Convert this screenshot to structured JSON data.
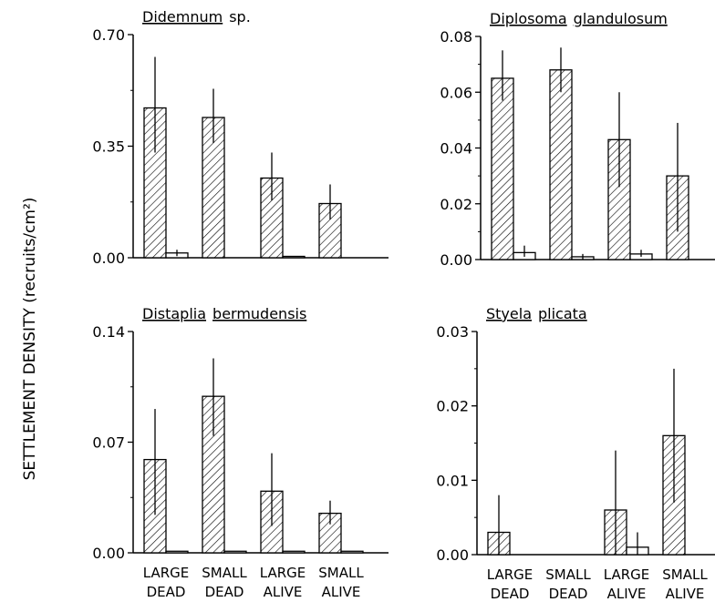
{
  "ylabel": "SETTLEMENT DENSITY (recruits/cm²)",
  "chart_data": [
    {
      "type": "bar",
      "title": [
        "Didemnum",
        "sp."
      ],
      "title_underlined": [
        true,
        false
      ],
      "ylim": [
        0,
        0.7
      ],
      "yticks": [
        "0.00",
        "0.35",
        "0.70"
      ],
      "categories": [
        "LARGE DEAD",
        "SMALL DEAD",
        "LARGE ALIVE",
        "SMALL ALIVE"
      ],
      "series": [
        {
          "fill": "hatched",
          "values": [
            0.47,
            0.44,
            0.25,
            0.17
          ],
          "err_low": [
            0.14,
            0.08,
            0.07,
            0.05
          ],
          "err_high": [
            0.16,
            0.09,
            0.08,
            0.06
          ]
        },
        {
          "fill": "open",
          "values": [
            0.015,
            null,
            0.004,
            null
          ],
          "err_low": [
            0.01,
            null,
            0,
            null
          ],
          "err_high": [
            0.01,
            null,
            0,
            null
          ]
        }
      ]
    },
    {
      "type": "bar",
      "title": [
        "Diplosoma",
        "glandulosum"
      ],
      "title_underlined": [
        true,
        true
      ],
      "ylim": [
        0,
        0.08
      ],
      "yticks": [
        "0.00",
        "0.02",
        "0.04",
        "0.06",
        "0.08"
      ],
      "categories": [
        "LARGE DEAD",
        "SMALL DEAD",
        "LARGE ALIVE",
        "SMALL ALIVE"
      ],
      "series": [
        {
          "fill": "hatched",
          "values": [
            0.065,
            0.068,
            0.043,
            0.03
          ],
          "err_low": [
            0.008,
            0.008,
            0.017,
            0.02
          ],
          "err_high": [
            0.01,
            0.008,
            0.017,
            0.019
          ]
        },
        {
          "fill": "open",
          "values": [
            0.0025,
            0.001,
            0.002,
            null
          ],
          "err_low": [
            0.0015,
            0.001,
            0.001,
            null
          ],
          "err_high": [
            0.0025,
            0.001,
            0.0015,
            null
          ]
        }
      ]
    },
    {
      "type": "bar",
      "title": [
        "Distaplia",
        "bermudensis"
      ],
      "title_underlined": [
        true,
        true
      ],
      "ylim": [
        0,
        0.14
      ],
      "yticks": [
        "0.00",
        "0.07",
        "0.14"
      ],
      "categories": [
        "LARGE DEAD",
        "SMALL DEAD",
        "LARGE ALIVE",
        "SMALL ALIVE"
      ],
      "xlabels": [
        [
          "LARGE",
          "DEAD"
        ],
        [
          "SMALL",
          "DEAD"
        ],
        [
          "LARGE",
          "ALIVE"
        ],
        [
          "SMALL",
          "ALIVE"
        ]
      ],
      "series": [
        {
          "fill": "hatched",
          "values": [
            0.059,
            0.099,
            0.039,
            0.025
          ],
          "err_low": [
            0.035,
            0.025,
            0.022,
            0.007
          ],
          "err_high": [
            0.032,
            0.024,
            0.024,
            0.008
          ]
        },
        {
          "fill": "open",
          "values": [
            0.001,
            0.001,
            0.001,
            0.001
          ],
          "err_low": [
            0,
            0,
            0,
            0
          ],
          "err_high": [
            0,
            0,
            0,
            0
          ]
        }
      ]
    },
    {
      "type": "bar",
      "title": [
        "Styela",
        "plicata"
      ],
      "title_underlined": [
        true,
        true
      ],
      "ylim": [
        0,
        0.03
      ],
      "yticks": [
        "0.00",
        "0.01",
        "0.02",
        "0.03"
      ],
      "categories": [
        "LARGE DEAD",
        "SMALL DEAD",
        "LARGE ALIVE",
        "SMALL ALIVE"
      ],
      "xlabels": [
        [
          "LARGE",
          "DEAD"
        ],
        [
          "SMALL",
          "DEAD"
        ],
        [
          "LARGE",
          "ALIVE"
        ],
        [
          "SMALL",
          "ALIVE"
        ]
      ],
      "series": [
        {
          "fill": "hatched",
          "values": [
            0.003,
            null,
            0.006,
            0.016
          ],
          "err_low": [
            0.003,
            null,
            0.006,
            0.009
          ],
          "err_high": [
            0.005,
            null,
            0.008,
            0.009
          ]
        },
        {
          "fill": "open",
          "values": [
            null,
            null,
            0.001,
            null
          ],
          "err_low": [
            null,
            null,
            0.001,
            null
          ],
          "err_high": [
            null,
            null,
            0.002,
            null
          ]
        }
      ]
    }
  ]
}
